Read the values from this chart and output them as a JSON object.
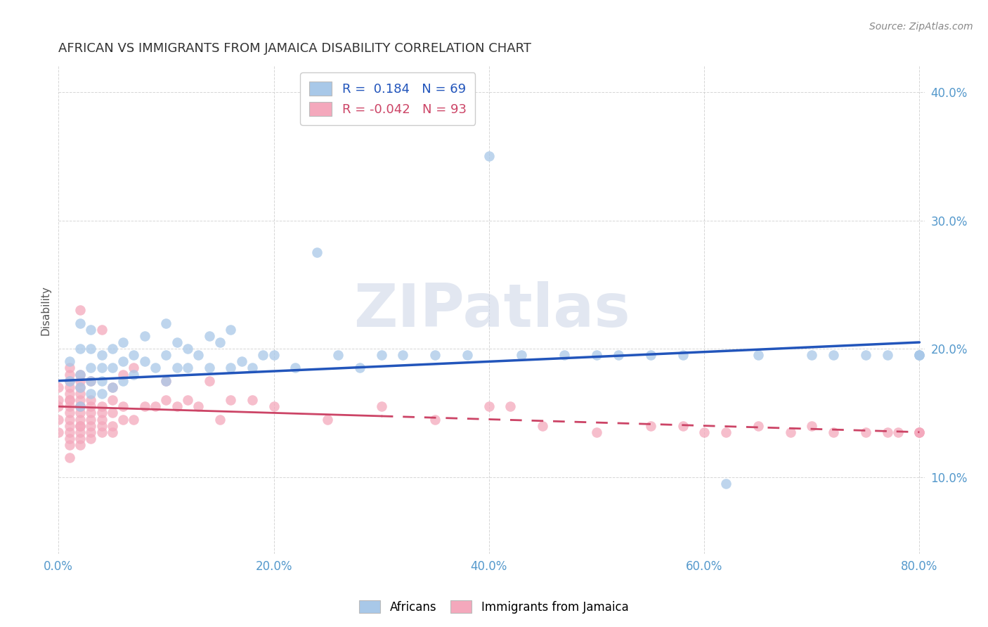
{
  "title": "AFRICAN VS IMMIGRANTS FROM JAMAICA DISABILITY CORRELATION CHART",
  "source": "Source: ZipAtlas.com",
  "xlabel": "",
  "ylabel": "Disability",
  "watermark": "ZIPatlas",
  "legend_label1": "Africans",
  "legend_label2": "Immigrants from Jamaica",
  "R1": 0.184,
  "N1": 69,
  "R2": -0.042,
  "N2": 93,
  "xlim": [
    0.0,
    0.8
  ],
  "ylim": [
    0.04,
    0.42
  ],
  "xticks": [
    0.0,
    0.2,
    0.4,
    0.6,
    0.8
  ],
  "yticks": [
    0.1,
    0.2,
    0.3,
    0.4
  ],
  "color_african": "#a8c8e8",
  "color_jamaica": "#f4a8bc",
  "trendline_african": "#2255bb",
  "trendline_jamaica": "#cc4466",
  "background": "#ffffff",
  "africans_x": [
    0.01,
    0.01,
    0.02,
    0.02,
    0.02,
    0.02,
    0.02,
    0.03,
    0.03,
    0.03,
    0.03,
    0.03,
    0.04,
    0.04,
    0.04,
    0.04,
    0.05,
    0.05,
    0.05,
    0.06,
    0.06,
    0.06,
    0.07,
    0.07,
    0.08,
    0.08,
    0.09,
    0.1,
    0.1,
    0.1,
    0.11,
    0.11,
    0.12,
    0.12,
    0.13,
    0.14,
    0.14,
    0.15,
    0.16,
    0.16,
    0.17,
    0.18,
    0.19,
    0.2,
    0.22,
    0.24,
    0.26,
    0.28,
    0.3,
    0.32,
    0.35,
    0.38,
    0.4,
    0.43,
    0.47,
    0.5,
    0.52,
    0.55,
    0.58,
    0.62,
    0.65,
    0.7,
    0.72,
    0.75,
    0.77,
    0.8,
    0.8,
    0.8
  ],
  "africans_y": [
    0.175,
    0.19,
    0.155,
    0.17,
    0.18,
    0.2,
    0.22,
    0.165,
    0.175,
    0.185,
    0.2,
    0.215,
    0.165,
    0.175,
    0.185,
    0.195,
    0.17,
    0.185,
    0.2,
    0.175,
    0.19,
    0.205,
    0.18,
    0.195,
    0.19,
    0.21,
    0.185,
    0.175,
    0.195,
    0.22,
    0.185,
    0.205,
    0.185,
    0.2,
    0.195,
    0.185,
    0.21,
    0.205,
    0.185,
    0.215,
    0.19,
    0.185,
    0.195,
    0.195,
    0.185,
    0.275,
    0.195,
    0.185,
    0.195,
    0.195,
    0.195,
    0.195,
    0.35,
    0.195,
    0.195,
    0.195,
    0.195,
    0.195,
    0.195,
    0.095,
    0.195,
    0.195,
    0.195,
    0.195,
    0.195,
    0.195,
    0.195,
    0.195
  ],
  "jamaica_x": [
    0.0,
    0.0,
    0.0,
    0.0,
    0.0,
    0.01,
    0.01,
    0.01,
    0.01,
    0.01,
    0.01,
    0.01,
    0.01,
    0.01,
    0.01,
    0.01,
    0.01,
    0.01,
    0.01,
    0.01,
    0.02,
    0.02,
    0.02,
    0.02,
    0.02,
    0.02,
    0.02,
    0.02,
    0.02,
    0.02,
    0.02,
    0.02,
    0.02,
    0.02,
    0.02,
    0.03,
    0.03,
    0.03,
    0.03,
    0.03,
    0.03,
    0.03,
    0.03,
    0.04,
    0.04,
    0.04,
    0.04,
    0.04,
    0.04,
    0.05,
    0.05,
    0.05,
    0.05,
    0.05,
    0.06,
    0.06,
    0.06,
    0.07,
    0.07,
    0.08,
    0.09,
    0.1,
    0.1,
    0.11,
    0.12,
    0.13,
    0.14,
    0.15,
    0.16,
    0.18,
    0.2,
    0.25,
    0.3,
    0.35,
    0.4,
    0.42,
    0.45,
    0.5,
    0.55,
    0.58,
    0.6,
    0.62,
    0.65,
    0.68,
    0.7,
    0.72,
    0.75,
    0.77,
    0.78,
    0.8,
    0.8,
    0.8
  ],
  "jamaica_y": [
    0.135,
    0.145,
    0.155,
    0.16,
    0.17,
    0.115,
    0.125,
    0.13,
    0.135,
    0.14,
    0.145,
    0.15,
    0.155,
    0.16,
    0.16,
    0.165,
    0.17,
    0.175,
    0.18,
    0.185,
    0.125,
    0.13,
    0.135,
    0.14,
    0.14,
    0.145,
    0.15,
    0.155,
    0.155,
    0.16,
    0.165,
    0.17,
    0.175,
    0.18,
    0.23,
    0.13,
    0.135,
    0.14,
    0.145,
    0.15,
    0.155,
    0.16,
    0.175,
    0.135,
    0.14,
    0.145,
    0.15,
    0.155,
    0.215,
    0.135,
    0.14,
    0.15,
    0.16,
    0.17,
    0.145,
    0.155,
    0.18,
    0.145,
    0.185,
    0.155,
    0.155,
    0.16,
    0.175,
    0.155,
    0.16,
    0.155,
    0.175,
    0.145,
    0.16,
    0.16,
    0.155,
    0.145,
    0.155,
    0.145,
    0.155,
    0.155,
    0.14,
    0.135,
    0.14,
    0.14,
    0.135,
    0.135,
    0.14,
    0.135,
    0.14,
    0.135,
    0.135,
    0.135,
    0.135,
    0.135,
    0.135,
    0.135
  ],
  "trendline_solid_end": 0.3,
  "trendline_a_start_x": 0.0,
  "trendline_a_end_x": 0.8,
  "trendline_a_start_y": 0.175,
  "trendline_a_end_y": 0.205,
  "trendline_j_start_x": 0.0,
  "trendline_j_end_x": 0.8,
  "trendline_j_start_y": 0.155,
  "trendline_j_end_y": 0.135
}
